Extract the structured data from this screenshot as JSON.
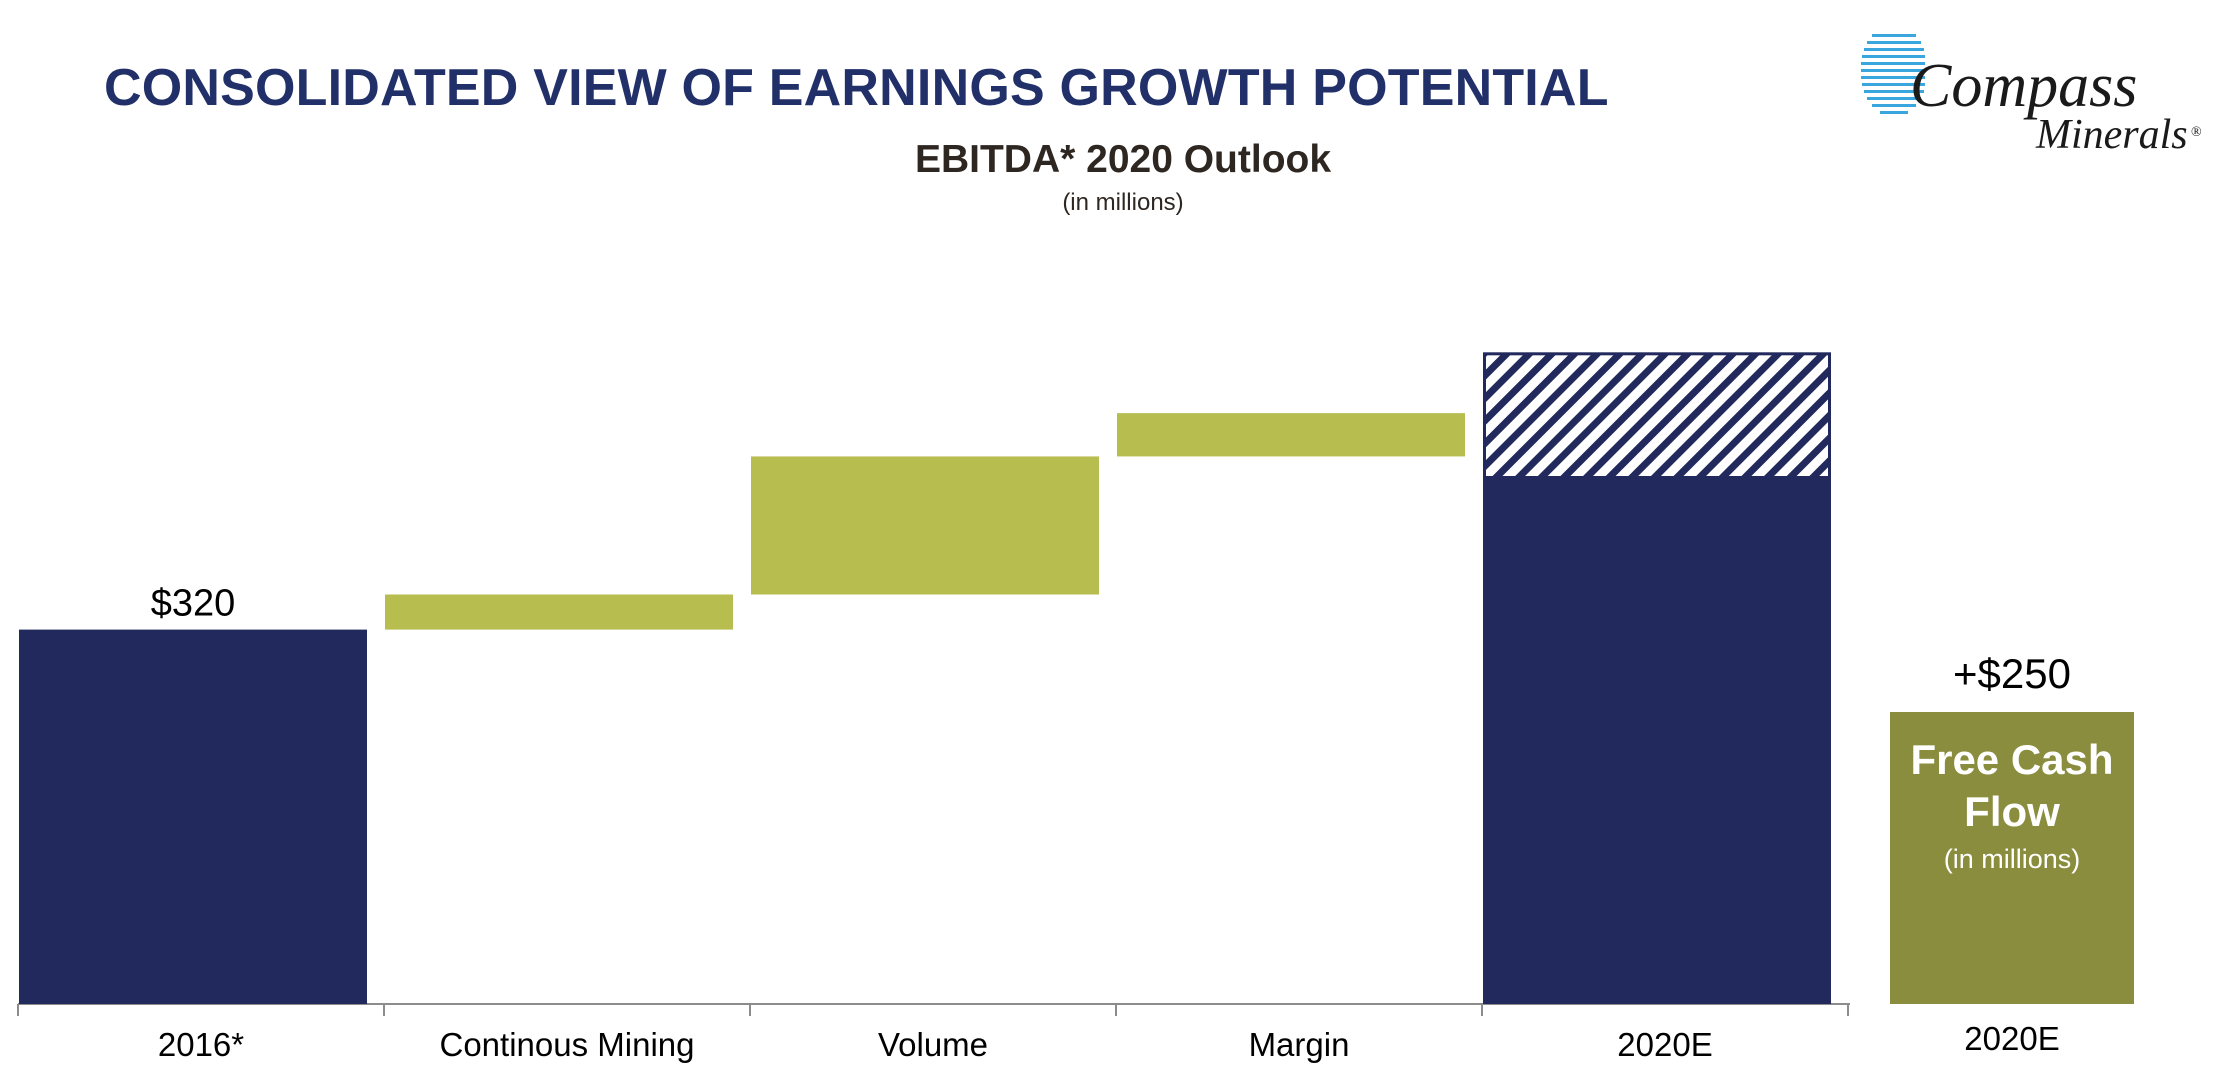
{
  "header": {
    "title": "CONSOLIDATED VIEW OF EARNINGS GROWTH POTENTIAL",
    "logo": {
      "line1": "Compass",
      "line2": "Minerals",
      "mark": "®",
      "icon": "globe-stripes-icon"
    }
  },
  "chart_data": {
    "type": "waterfall",
    "title": "EBITDA* 2020 Outlook",
    "subtitle": "(in millions)",
    "categories": [
      "2016*",
      "Continous Mining",
      "Volume",
      "Margin",
      "2020E"
    ],
    "bars": [
      {
        "category": "2016*",
        "kind": "total",
        "start": 0,
        "end": 320,
        "label": "$320"
      },
      {
        "category": "Continous Mining",
        "kind": "increase",
        "start": 320,
        "end": 350
      },
      {
        "category": "Volume",
        "kind": "increase",
        "start": 350,
        "end": 468
      },
      {
        "category": "Margin",
        "kind": "increase",
        "start": 468,
        "end": 505
      },
      {
        "category": "2020E",
        "kind": "total",
        "start": 0,
        "end": 450,
        "range_end": 557
      }
    ],
    "ylim": [
      0,
      600
    ],
    "grid": false,
    "colors": {
      "total": "#22295c",
      "increase": "#b8bd50",
      "range_hatch": "#22295c",
      "axis": "#8c8c8c"
    }
  },
  "free_cash_flow": {
    "value_label": "+$250",
    "title_line1": "Free Cash",
    "title_line2": "Flow",
    "subtitle": "(in millions)",
    "category": "2020E",
    "color": "#8a8d3e"
  }
}
